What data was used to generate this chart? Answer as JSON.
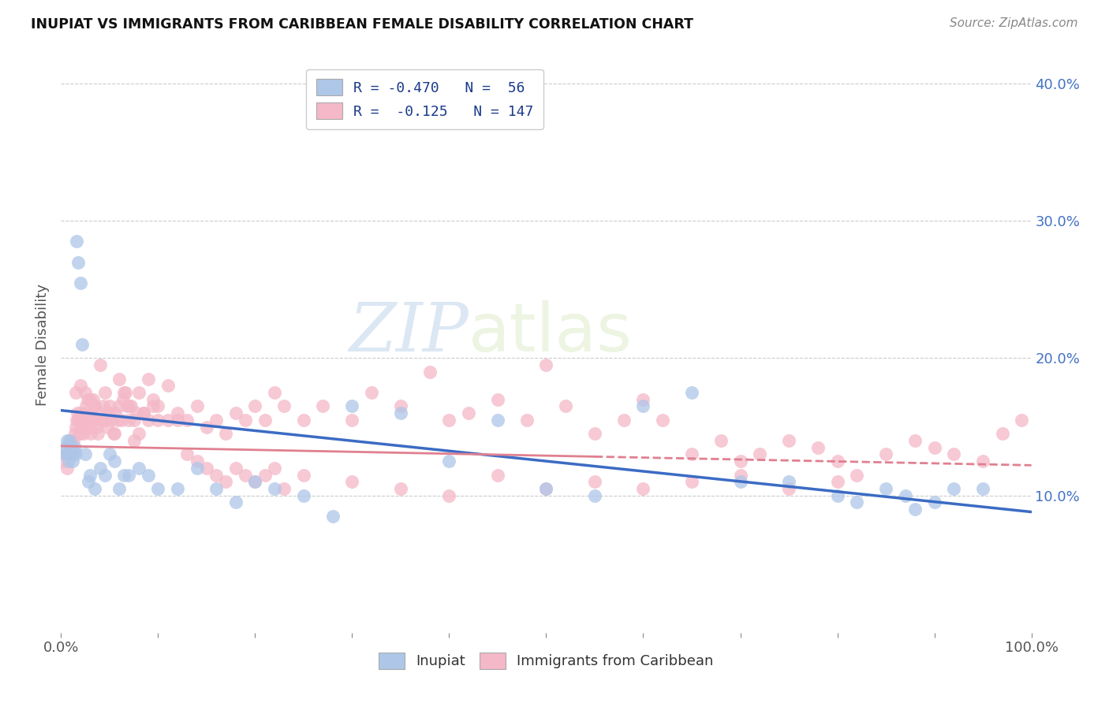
{
  "title": "INUPIAT VS IMMIGRANTS FROM CARIBBEAN FEMALE DISABILITY CORRELATION CHART",
  "source": "Source: ZipAtlas.com",
  "ylabel": "Female Disability",
  "xlim": [
    0,
    1.0
  ],
  "ylim": [
    0,
    0.42
  ],
  "xticks": [
    0.0,
    0.1,
    0.2,
    0.3,
    0.4,
    0.5,
    0.6,
    0.7,
    0.8,
    0.9,
    1.0
  ],
  "xticklabels": [
    "0.0%",
    "",
    "",
    "",
    "",
    "",
    "",
    "",
    "",
    "",
    "100.0%"
  ],
  "yticks_right": [
    0.1,
    0.2,
    0.3,
    0.4
  ],
  "yticklabels_right": [
    "10.0%",
    "20.0%",
    "30.0%",
    "40.0%"
  ],
  "inupiat_color": "#aec6e8",
  "caribbean_color": "#f4b8c8",
  "inupiat_line_color": "#3b6bc4",
  "caribbean_line_color": "#e08090",
  "legend_label1": "R = -0.470   N =  56",
  "legend_label2": "R =  -0.125   N = 147",
  "watermark_zip": "ZIP",
  "watermark_atlas": "atlas",
  "inupiat_x": [
    0.004,
    0.005,
    0.006,
    0.007,
    0.008,
    0.009,
    0.01,
    0.011,
    0.012,
    0.013,
    0.014,
    0.015,
    0.016,
    0.018,
    0.02,
    0.022,
    0.025,
    0.028,
    0.03,
    0.035,
    0.04,
    0.045,
    0.05,
    0.055,
    0.06,
    0.065,
    0.07,
    0.08,
    0.09,
    0.1,
    0.12,
    0.14,
    0.16,
    0.18,
    0.2,
    0.22,
    0.25,
    0.28,
    0.3,
    0.35,
    0.4,
    0.45,
    0.5,
    0.55,
    0.6,
    0.65,
    0.7,
    0.75,
    0.8,
    0.82,
    0.85,
    0.87,
    0.88,
    0.9,
    0.92,
    0.95
  ],
  "inupiat_y": [
    0.135,
    0.13,
    0.14,
    0.13,
    0.125,
    0.14,
    0.135,
    0.13,
    0.125,
    0.13,
    0.135,
    0.13,
    0.285,
    0.27,
    0.255,
    0.21,
    0.13,
    0.11,
    0.115,
    0.105,
    0.12,
    0.115,
    0.13,
    0.125,
    0.105,
    0.115,
    0.115,
    0.12,
    0.115,
    0.105,
    0.105,
    0.12,
    0.105,
    0.095,
    0.11,
    0.105,
    0.1,
    0.085,
    0.165,
    0.16,
    0.125,
    0.155,
    0.105,
    0.1,
    0.165,
    0.175,
    0.11,
    0.11,
    0.1,
    0.095,
    0.105,
    0.1,
    0.09,
    0.095,
    0.105,
    0.105
  ],
  "caribbean_x": [
    0.003,
    0.005,
    0.006,
    0.007,
    0.008,
    0.009,
    0.01,
    0.011,
    0.012,
    0.013,
    0.014,
    0.015,
    0.016,
    0.017,
    0.018,
    0.019,
    0.02,
    0.021,
    0.022,
    0.023,
    0.024,
    0.025,
    0.026,
    0.027,
    0.028,
    0.029,
    0.03,
    0.031,
    0.032,
    0.033,
    0.034,
    0.035,
    0.036,
    0.038,
    0.04,
    0.042,
    0.044,
    0.046,
    0.048,
    0.05,
    0.052,
    0.054,
    0.056,
    0.058,
    0.06,
    0.062,
    0.064,
    0.066,
    0.068,
    0.07,
    0.072,
    0.075,
    0.078,
    0.08,
    0.085,
    0.09,
    0.095,
    0.1,
    0.11,
    0.12,
    0.13,
    0.14,
    0.15,
    0.16,
    0.17,
    0.18,
    0.19,
    0.2,
    0.21,
    0.22,
    0.23,
    0.25,
    0.27,
    0.3,
    0.32,
    0.35,
    0.38,
    0.4,
    0.42,
    0.45,
    0.48,
    0.5,
    0.52,
    0.55,
    0.58,
    0.6,
    0.62,
    0.65,
    0.68,
    0.7,
    0.72,
    0.75,
    0.78,
    0.8,
    0.82,
    0.85,
    0.88,
    0.9,
    0.92,
    0.95,
    0.97,
    0.99,
    0.005,
    0.01,
    0.015,
    0.02,
    0.025,
    0.03,
    0.035,
    0.04,
    0.045,
    0.05,
    0.055,
    0.06,
    0.065,
    0.07,
    0.075,
    0.08,
    0.085,
    0.09,
    0.095,
    0.1,
    0.11,
    0.12,
    0.13,
    0.14,
    0.15,
    0.16,
    0.17,
    0.18,
    0.19,
    0.2,
    0.21,
    0.22,
    0.23,
    0.25,
    0.3,
    0.35,
    0.4,
    0.45,
    0.5,
    0.55,
    0.6,
    0.65,
    0.7,
    0.75,
    0.8
  ],
  "caribbean_y": [
    0.125,
    0.13,
    0.12,
    0.135,
    0.13,
    0.14,
    0.135,
    0.13,
    0.135,
    0.14,
    0.145,
    0.15,
    0.155,
    0.16,
    0.155,
    0.145,
    0.16,
    0.155,
    0.15,
    0.145,
    0.155,
    0.16,
    0.165,
    0.17,
    0.155,
    0.15,
    0.155,
    0.145,
    0.155,
    0.17,
    0.165,
    0.155,
    0.15,
    0.145,
    0.16,
    0.155,
    0.165,
    0.155,
    0.15,
    0.16,
    0.155,
    0.145,
    0.16,
    0.155,
    0.165,
    0.155,
    0.17,
    0.175,
    0.165,
    0.155,
    0.165,
    0.155,
    0.16,
    0.145,
    0.16,
    0.155,
    0.165,
    0.155,
    0.155,
    0.16,
    0.155,
    0.165,
    0.15,
    0.155,
    0.145,
    0.16,
    0.155,
    0.165,
    0.155,
    0.175,
    0.165,
    0.155,
    0.165,
    0.155,
    0.175,
    0.165,
    0.19,
    0.155,
    0.16,
    0.17,
    0.155,
    0.195,
    0.165,
    0.145,
    0.155,
    0.17,
    0.155,
    0.13,
    0.14,
    0.125,
    0.13,
    0.14,
    0.135,
    0.125,
    0.115,
    0.13,
    0.14,
    0.135,
    0.13,
    0.125,
    0.145,
    0.155,
    0.13,
    0.14,
    0.175,
    0.18,
    0.175,
    0.17,
    0.165,
    0.195,
    0.175,
    0.165,
    0.145,
    0.185,
    0.175,
    0.165,
    0.14,
    0.175,
    0.16,
    0.185,
    0.17,
    0.165,
    0.18,
    0.155,
    0.13,
    0.125,
    0.12,
    0.115,
    0.11,
    0.12,
    0.115,
    0.11,
    0.115,
    0.12,
    0.105,
    0.115,
    0.11,
    0.105,
    0.1,
    0.115,
    0.105,
    0.11,
    0.105,
    0.11,
    0.115,
    0.105,
    0.11
  ],
  "inupiat_line_x0": 0.0,
  "inupiat_line_x1": 1.0,
  "inupiat_line_y0": 0.162,
  "inupiat_line_y1": 0.088,
  "caribbean_line_x0": 0.0,
  "caribbean_line_x1": 1.0,
  "caribbean_line_y0": 0.136,
  "caribbean_line_y1": 0.122
}
